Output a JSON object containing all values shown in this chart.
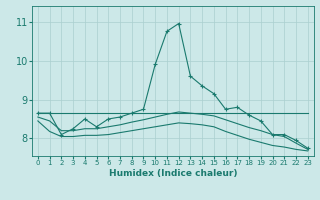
{
  "xlabel": "Humidex (Indice chaleur)",
  "background_color": "#cce8e8",
  "line_color": "#1a7a6e",
  "grid_color": "#aacfcf",
  "x_values": [
    0,
    1,
    2,
    3,
    4,
    5,
    6,
    7,
    8,
    9,
    10,
    11,
    12,
    13,
    14,
    15,
    16,
    17,
    18,
    19,
    20,
    21,
    22,
    23
  ],
  "main_line": [
    8.65,
    8.65,
    8.1,
    8.25,
    8.5,
    8.3,
    8.5,
    8.55,
    8.65,
    8.75,
    9.9,
    10.75,
    10.95,
    9.6,
    9.35,
    9.15,
    8.75,
    8.8,
    8.6,
    8.45,
    8.1,
    8.1,
    7.95,
    7.75
  ],
  "upper_flat": [
    8.65,
    8.65,
    8.65,
    8.65,
    8.65,
    8.65,
    8.65,
    8.65,
    8.65,
    8.65,
    8.65,
    8.65,
    8.65,
    8.65,
    8.65,
    8.65,
    8.65,
    8.65,
    8.65,
    8.65,
    8.65,
    8.65,
    8.65,
    8.65
  ],
  "mid_line": [
    8.55,
    8.45,
    8.2,
    8.2,
    8.25,
    8.25,
    8.3,
    8.35,
    8.42,
    8.48,
    8.55,
    8.62,
    8.68,
    8.65,
    8.62,
    8.58,
    8.48,
    8.38,
    8.28,
    8.2,
    8.1,
    8.05,
    7.88,
    7.72
  ],
  "lower_line": [
    8.45,
    8.18,
    8.05,
    8.05,
    8.08,
    8.08,
    8.1,
    8.15,
    8.2,
    8.25,
    8.3,
    8.35,
    8.4,
    8.38,
    8.35,
    8.3,
    8.18,
    8.08,
    7.98,
    7.9,
    7.82,
    7.78,
    7.72,
    7.68
  ],
  "ylim": [
    7.55,
    11.4
  ],
  "yticks": [
    8,
    9,
    10,
    11
  ],
  "xlim": [
    -0.5,
    23.5
  ],
  "xticks": [
    0,
    1,
    2,
    3,
    4,
    5,
    6,
    7,
    8,
    9,
    10,
    11,
    12,
    13,
    14,
    15,
    16,
    17,
    18,
    19,
    20,
    21,
    22,
    23
  ]
}
